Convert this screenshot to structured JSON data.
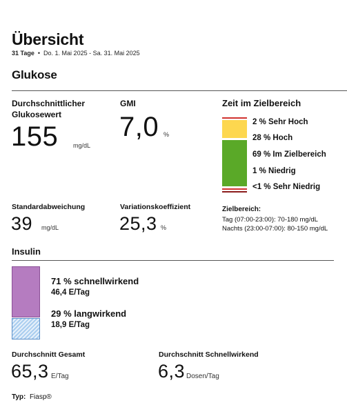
{
  "header": {
    "title": "Übersicht",
    "days": "31 Tage",
    "separator": "•",
    "date_range": "Do. 1. Mai 2025 - Sa. 31. Mai 2025"
  },
  "glucose": {
    "section_title": "Glukose",
    "avg_label_line1": "Durchschnittlicher",
    "avg_label_line2": "Glukosewert",
    "avg_value": "155",
    "avg_unit": "mg/dL",
    "gmi_label": "GMI",
    "gmi_value": "7,0",
    "gmi_unit": "%",
    "sd_label": "Standardabweichung",
    "sd_value": "39",
    "sd_unit": "mg/dL",
    "cv_label": "Variationskoeffizient",
    "cv_value": "25,3",
    "cv_unit": "%"
  },
  "time_in_range": {
    "title": "Zeit im Zielbereich",
    "segments": [
      {
        "label": "2 % Sehr Hoch",
        "percent": 2,
        "color": "#d0312d"
      },
      {
        "label": "28 % Hoch",
        "percent": 28,
        "color": "#fdd74f"
      },
      {
        "label": "69 % Im Zielbereich",
        "percent": 69,
        "color": "#5aa928"
      },
      {
        "label": "1 % Niedrig",
        "percent": 1,
        "color": "#d0312d"
      },
      {
        "label": "<1 % Sehr Niedrig",
        "percent": 0.5,
        "color": "#8b1a1a"
      }
    ],
    "target_title": "Zielbereich:",
    "target_day": "Tag (07:00-23:00): 70-180 mg/dL",
    "target_night": "Nachts (23:00-07:00): 80-150 mg/dL"
  },
  "insulin": {
    "section_title": "Insulin",
    "rapid_pct": "71 % schnellwirkend",
    "rapid_rate": "46,4 E/Tag",
    "rapid_color": "#b57cc0",
    "long_pct": "29 % langwirkend",
    "long_rate": "18,9 E/Tag",
    "long_color": "#a9cdef",
    "avg_total_label": "Durchschnitt Gesamt",
    "avg_total_value": "65,3",
    "avg_total_unit": "E/Tag",
    "avg_rapid_label": "Durchschnitt Schnellwirkend",
    "avg_rapid_value": "6,3",
    "avg_rapid_unit": "Dosen/Tag",
    "type_label": "Typ:",
    "type_value": "Fiasp®"
  }
}
